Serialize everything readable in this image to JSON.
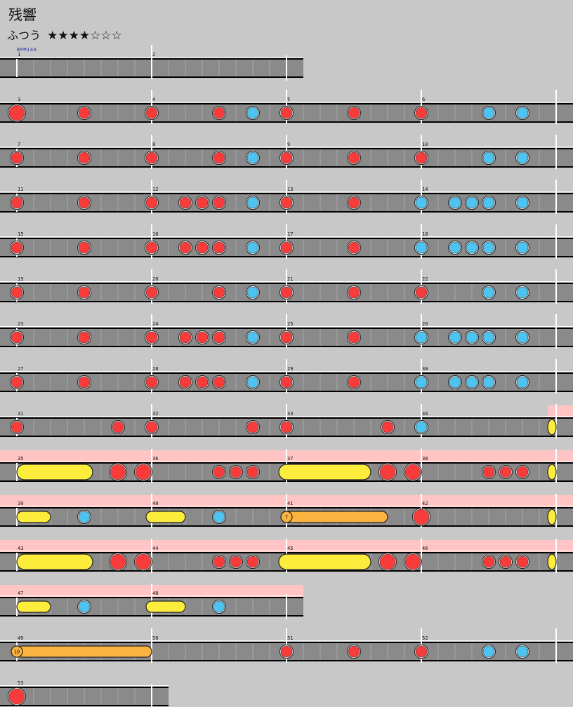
{
  "song": {
    "title": "残響",
    "difficulty": "ふつう",
    "stars": "★★★★☆☆☆",
    "bpm_label": "BPM140"
  },
  "chart_data": {
    "type": "taiko-score",
    "difficulty_level": 4,
    "difficulty_max": 7,
    "bpm": 140,
    "measures_per_row": 4,
    "positions_per_measure": 8,
    "rows": [
      {
        "measures": [
          1,
          2
        ],
        "gogo": [],
        "notes": [],
        "rolls": []
      },
      {
        "measures": [
          3,
          4,
          5,
          6
        ],
        "gogo": [],
        "notes": [
          [
            0,
            "DON"
          ],
          [
            4,
            "don"
          ],
          [
            8,
            "don"
          ],
          [
            12,
            "don"
          ],
          [
            14,
            "ka"
          ],
          [
            16,
            "don"
          ],
          [
            20,
            "don"
          ],
          [
            24,
            "don"
          ],
          [
            28,
            "ka"
          ],
          [
            30,
            "ka"
          ],
          [
            32,
            "bar"
          ]
        ],
        "rolls": []
      },
      {
        "measures": [
          7,
          8,
          9,
          10
        ],
        "gogo": [],
        "notes": [
          [
            0,
            "don"
          ],
          [
            4,
            "don"
          ],
          [
            8,
            "don"
          ],
          [
            12,
            "don"
          ],
          [
            14,
            "ka"
          ],
          [
            16,
            "don"
          ],
          [
            20,
            "don"
          ],
          [
            24,
            "don"
          ],
          [
            28,
            "ka"
          ],
          [
            30,
            "ka"
          ],
          [
            32,
            "bar"
          ]
        ],
        "rolls": []
      },
      {
        "measures": [
          11,
          12,
          13,
          14
        ],
        "gogo": [],
        "notes": [
          [
            0,
            "don"
          ],
          [
            4,
            "don"
          ],
          [
            8,
            "don"
          ],
          [
            10,
            "don"
          ],
          [
            11,
            "don"
          ],
          [
            12,
            "don"
          ],
          [
            14,
            "ka"
          ],
          [
            16,
            "don"
          ],
          [
            20,
            "don"
          ],
          [
            24,
            "ka"
          ],
          [
            26,
            "ka"
          ],
          [
            27,
            "ka"
          ],
          [
            28,
            "ka"
          ],
          [
            30,
            "ka"
          ],
          [
            32,
            "bar"
          ]
        ],
        "rolls": []
      },
      {
        "measures": [
          15,
          16,
          17,
          18
        ],
        "gogo": [],
        "notes": [
          [
            0,
            "don"
          ],
          [
            4,
            "don"
          ],
          [
            8,
            "don"
          ],
          [
            10,
            "don"
          ],
          [
            11,
            "don"
          ],
          [
            12,
            "don"
          ],
          [
            14,
            "ka"
          ],
          [
            16,
            "don"
          ],
          [
            20,
            "don"
          ],
          [
            24,
            "ka"
          ],
          [
            26,
            "ka"
          ],
          [
            27,
            "ka"
          ],
          [
            28,
            "ka"
          ],
          [
            30,
            "ka"
          ],
          [
            32,
            "bar"
          ]
        ],
        "rolls": []
      },
      {
        "measures": [
          19,
          20,
          21,
          22
        ],
        "gogo": [],
        "notes": [
          [
            0,
            "don"
          ],
          [
            4,
            "don"
          ],
          [
            8,
            "don"
          ],
          [
            12,
            "don"
          ],
          [
            14,
            "ka"
          ],
          [
            16,
            "don"
          ],
          [
            20,
            "don"
          ],
          [
            24,
            "don"
          ],
          [
            28,
            "ka"
          ],
          [
            30,
            "ka"
          ],
          [
            32,
            "bar"
          ]
        ],
        "rolls": []
      },
      {
        "measures": [
          23,
          24,
          25,
          26
        ],
        "gogo": [],
        "notes": [
          [
            0,
            "don"
          ],
          [
            4,
            "don"
          ],
          [
            8,
            "don"
          ],
          [
            10,
            "don"
          ],
          [
            11,
            "don"
          ],
          [
            12,
            "don"
          ],
          [
            14,
            "ka"
          ],
          [
            16,
            "don"
          ],
          [
            20,
            "don"
          ],
          [
            24,
            "ka"
          ],
          [
            26,
            "ka"
          ],
          [
            27,
            "ka"
          ],
          [
            28,
            "ka"
          ],
          [
            30,
            "ka"
          ],
          [
            32,
            "bar"
          ]
        ],
        "rolls": []
      },
      {
        "measures": [
          27,
          28,
          29,
          30
        ],
        "gogo": [],
        "notes": [
          [
            0,
            "don"
          ],
          [
            4,
            "don"
          ],
          [
            8,
            "don"
          ],
          [
            10,
            "don"
          ],
          [
            11,
            "don"
          ],
          [
            12,
            "don"
          ],
          [
            14,
            "ka"
          ],
          [
            16,
            "don"
          ],
          [
            20,
            "don"
          ],
          [
            24,
            "ka"
          ],
          [
            26,
            "ka"
          ],
          [
            27,
            "ka"
          ],
          [
            28,
            "ka"
          ],
          [
            30,
            "ka"
          ],
          [
            32,
            "bar"
          ]
        ],
        "rolls": []
      },
      {
        "measures": [
          31,
          32,
          33,
          34
        ],
        "gogo": [
          [
            31.5,
            33
          ]
        ],
        "notes": [
          [
            0,
            "don"
          ],
          [
            6,
            "don"
          ],
          [
            8,
            "don"
          ],
          [
            14,
            "don"
          ],
          [
            16,
            "don"
          ],
          [
            22,
            "don"
          ],
          [
            24,
            "ka"
          ],
          [
            32,
            "bar"
          ]
        ],
        "rolls": [
          [
            31.5,
            33,
            "ROLL"
          ]
        ]
      },
      {
        "measures": [
          35,
          36,
          37,
          38
        ],
        "gogo": [
          [
            0,
            33
          ]
        ],
        "notes": [
          [
            6,
            "DON"
          ],
          [
            7.5,
            "DON"
          ],
          [
            12,
            "don"
          ],
          [
            13,
            "don"
          ],
          [
            14,
            "don"
          ],
          [
            22,
            "DON"
          ],
          [
            23.5,
            "DON"
          ],
          [
            28,
            "don"
          ],
          [
            29,
            "don"
          ],
          [
            30,
            "don"
          ],
          [
            32,
            "bar"
          ]
        ],
        "rolls": [
          [
            0,
            4.5,
            "ROLL"
          ],
          [
            16,
            21,
            "ROLL"
          ],
          [
            31.5,
            33,
            "ROLL"
          ]
        ]
      },
      {
        "measures": [
          39,
          40,
          41,
          42
        ],
        "gogo": [
          [
            0,
            33
          ]
        ],
        "notes": [
          [
            4,
            "ka"
          ],
          [
            12,
            "ka"
          ],
          [
            24,
            "DON"
          ],
          [
            32,
            "bar"
          ]
        ],
        "rolls": [
          [
            0,
            2,
            "roll"
          ],
          [
            8,
            10,
            "roll"
          ],
          [
            16,
            22,
            "balloon"
          ],
          [
            31.5,
            33,
            "ROLL"
          ]
        ],
        "balloons": [
          {
            "at": 16,
            "count": "7"
          }
        ]
      },
      {
        "measures": [
          43,
          44,
          45,
          46
        ],
        "gogo": [
          [
            0,
            33
          ]
        ],
        "notes": [
          [
            6,
            "DON"
          ],
          [
            7.5,
            "DON"
          ],
          [
            12,
            "don"
          ],
          [
            13,
            "don"
          ],
          [
            14,
            "don"
          ],
          [
            22,
            "DON"
          ],
          [
            23.5,
            "DON"
          ],
          [
            28,
            "don"
          ],
          [
            29,
            "don"
          ],
          [
            30,
            "don"
          ],
          [
            32,
            "bar"
          ]
        ],
        "rolls": [
          [
            0,
            4.5,
            "ROLL"
          ],
          [
            16,
            21,
            "ROLL"
          ],
          [
            31.5,
            33,
            "ROLL"
          ]
        ]
      },
      {
        "measures": [
          47,
          48
        ],
        "gogo": [
          [
            0,
            17
          ]
        ],
        "notes": [
          [
            4,
            "ka"
          ],
          [
            12,
            "ka"
          ]
        ],
        "rolls": [
          [
            0,
            2,
            "roll"
          ],
          [
            8,
            10,
            "roll"
          ]
        ]
      },
      {
        "measures": [
          49,
          50,
          51,
          52
        ],
        "gogo": [],
        "notes": [
          [
            16,
            "don"
          ],
          [
            20,
            "don"
          ],
          [
            24,
            "don"
          ],
          [
            28,
            "ka"
          ],
          [
            30,
            "ka"
          ],
          [
            32,
            "bar"
          ]
        ],
        "rolls": [
          [
            0,
            8,
            "balloon"
          ]
        ],
        "balloons": [
          {
            "at": 0,
            "count": "10"
          }
        ]
      },
      {
        "measures": [
          53
        ],
        "gogo": [],
        "notes": [
          [
            0,
            "DON"
          ]
        ],
        "rolls": []
      }
    ]
  }
}
